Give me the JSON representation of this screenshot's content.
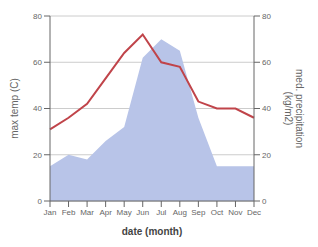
{
  "chart_data": {
    "type": "line",
    "xlabel": "date (month)",
    "ylabel": "max temp (C)",
    "y2label": "med. precipitation\n(kg/m2)",
    "categories": [
      "Jan",
      "Feb",
      "Mar",
      "Apr",
      "May",
      "Jun",
      "Jul",
      "Aug",
      "Sep",
      "Oct",
      "Nov",
      "Dec"
    ],
    "series": [
      {
        "type": "area",
        "color": "#b8c4e8",
        "values": [
          15,
          20,
          18,
          26,
          32,
          62,
          70,
          65,
          36,
          15,
          15,
          15
        ]
      },
      {
        "type": "line",
        "color": "#c0444a",
        "axis": "y2",
        "values": [
          31,
          36,
          42,
          53,
          64,
          72,
          60,
          58,
          43,
          40,
          40,
          36
        ]
      }
    ],
    "ylim": [
      0,
      80
    ],
    "yticks": [
      0,
      20,
      40,
      60,
      80
    ],
    "y2lim": [
      0,
      80
    ],
    "y2ticks": [
      0,
      20,
      40,
      60,
      80
    ],
    "grid": true
  }
}
